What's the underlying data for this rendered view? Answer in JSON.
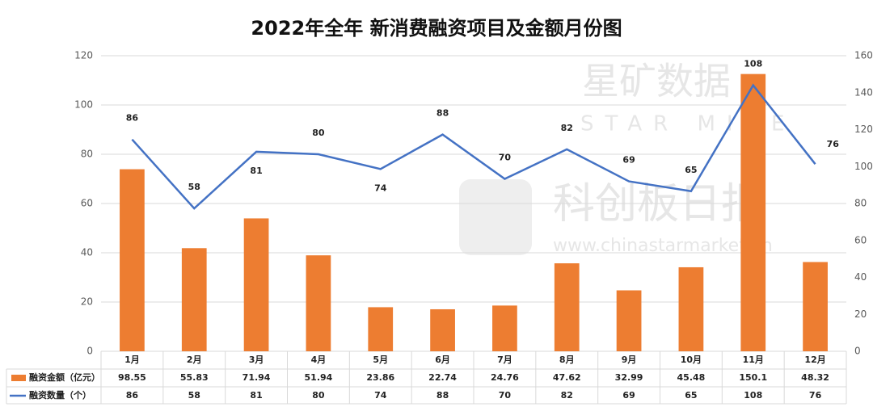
{
  "watermark": {
    "brand": "星矿数据",
    "brand_en": "STAR MINE",
    "source": "科创板日报",
    "url": "www.chinastarmarket.cn"
  },
  "chart_data": {
    "type": "bar-line",
    "title": "2022年全年 新消费融资项目及金额月份图",
    "categories": [
      "1月",
      "2月",
      "3月",
      "4月",
      "5月",
      "6月",
      "7月",
      "8月",
      "9月",
      "10月",
      "11月",
      "12月"
    ],
    "series": [
      {
        "name": "融资金额（亿元）",
        "type": "bar",
        "axis": "y2",
        "color": "#ed7d31",
        "values": [
          98.55,
          55.83,
          71.94,
          51.94,
          23.86,
          22.74,
          24.76,
          47.62,
          32.99,
          45.48,
          150.1,
          48.32
        ]
      },
      {
        "name": "融资数量（个）",
        "type": "line",
        "axis": "y",
        "color": "#4472c4",
        "values": [
          86,
          58,
          81,
          80,
          74,
          88,
          70,
          82,
          69,
          65,
          108,
          76
        ]
      }
    ],
    "ylim": [
      0,
      120
    ],
    "yticks": [
      0,
      20,
      40,
      60,
      80,
      100,
      120
    ],
    "y2lim": [
      0,
      160
    ],
    "y2ticks": [
      0,
      20,
      40,
      60,
      80,
      100,
      120,
      140,
      160
    ],
    "grid": true
  }
}
